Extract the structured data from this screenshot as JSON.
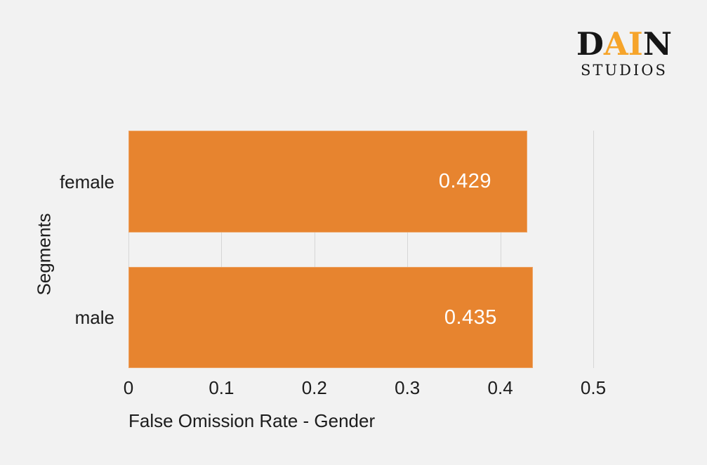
{
  "page": {
    "background_color": "#f2f2f2",
    "text_color": "#1c1c1c"
  },
  "logo": {
    "wordmark": "DAIN",
    "letters": [
      {
        "char": "D",
        "color": "#161616"
      },
      {
        "char": "A",
        "color": "#f6a42a"
      },
      {
        "char": "I",
        "color": "#f6a42a"
      },
      {
        "char": "N",
        "color": "#161616"
      }
    ],
    "subtitle": "STUDIOS",
    "subtitle_color": "#161616"
  },
  "chart_data": {
    "type": "bar",
    "orientation": "horizontal",
    "categories": [
      "female",
      "male"
    ],
    "values": [
      0.429,
      0.435
    ],
    "value_labels": [
      "0.429",
      "0.435"
    ],
    "value_label_color": "#ffffff",
    "bar_color": "#e7842f",
    "title": "",
    "xlabel": "False Omission Rate - Gender",
    "ylabel": "Segments",
    "xlim": [
      0,
      0.5
    ],
    "xticks": [
      {
        "value": 0.0,
        "label": "0"
      },
      {
        "value": 0.1,
        "label": "0.1"
      },
      {
        "value": 0.2,
        "label": "0.2"
      },
      {
        "value": 0.3,
        "label": "0.3"
      },
      {
        "value": 0.4,
        "label": "0.4"
      },
      {
        "value": 0.5,
        "label": "0.5"
      }
    ],
    "grid": true,
    "gridline_color": "#d6d6d6",
    "legend": "none"
  }
}
